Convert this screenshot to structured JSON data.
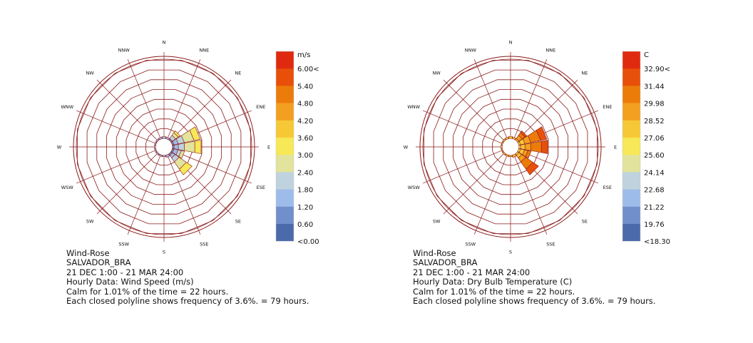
{
  "chart_data": [
    {
      "type": "wind-rose",
      "directions": [
        "N",
        "NNE",
        "NE",
        "ENE",
        "E",
        "ESE",
        "SE",
        "SSE",
        "S",
        "SSW",
        "SW",
        "WSW",
        "W",
        "WNW",
        "NW",
        "NNW"
      ],
      "ring_step_percent": 3.6,
      "ring_count": 8,
      "legend_unit": "m/s",
      "legend_labels": [
        "6.00<",
        "5.40",
        "4.80",
        "4.20",
        "3.60",
        "3.00",
        "2.40",
        "1.80",
        "1.20",
        "0.60",
        "<0.00"
      ],
      "legend_colors": [
        "#e02a10",
        "#e8500a",
        "#ec7c0a",
        "#f3a020",
        "#f7c836",
        "#f7e858",
        "#e2e39c",
        "#bfd3de",
        "#9ebce9",
        "#708fcb",
        "#4a6aab"
      ],
      "series": [
        {
          "direction": "N",
          "total_percent": 0.7,
          "bins": [
            {
              "color_index": 8,
              "percent": 0.7
            }
          ]
        },
        {
          "direction": "NNE",
          "total_percent": 0.6,
          "bins": [
            {
              "color_index": 8,
              "percent": 0.6
            }
          ]
        },
        {
          "direction": "NE",
          "total_percent": 4.0,
          "bins": [
            {
              "color_index": 9,
              "percent": 0.6
            },
            {
              "color_index": 7,
              "percent": 1.4
            },
            {
              "color_index": 6,
              "percent": 1.2
            },
            {
              "color_index": 5,
              "percent": 0.8
            }
          ]
        },
        {
          "direction": "ENE",
          "total_percent": 10.3,
          "bins": [
            {
              "color_index": 9,
              "percent": 0.6
            },
            {
              "color_index": 8,
              "percent": 1.6
            },
            {
              "color_index": 7,
              "percent": 2.2
            },
            {
              "color_index": 6,
              "percent": 3.6
            },
            {
              "color_index": 5,
              "percent": 2.3
            }
          ]
        },
        {
          "direction": "E",
          "total_percent": 10.5,
          "bins": [
            {
              "color_index": 9,
              "percent": 0.6
            },
            {
              "color_index": 8,
              "percent": 1.6
            },
            {
              "color_index": 7,
              "percent": 2.2
            },
            {
              "color_index": 6,
              "percent": 3.8
            },
            {
              "color_index": 5,
              "percent": 2.3
            }
          ]
        },
        {
          "direction": "ESE",
          "total_percent": 4.5,
          "bins": [
            {
              "color_index": 9,
              "percent": 0.6
            },
            {
              "color_index": 8,
              "percent": 1.5
            },
            {
              "color_index": 7,
              "percent": 1.2
            },
            {
              "color_index": 6,
              "percent": 1.2
            }
          ]
        },
        {
          "direction": "SE",
          "total_percent": 9.2,
          "bins": [
            {
              "color_index": 9,
              "percent": 0.6
            },
            {
              "color_index": 8,
              "percent": 1.2
            },
            {
              "color_index": 7,
              "percent": 1.7
            },
            {
              "color_index": 6,
              "percent": 3.2
            },
            {
              "color_index": 5,
              "percent": 2.5
            }
          ]
        },
        {
          "direction": "SSE",
          "total_percent": 0.8,
          "bins": [
            {
              "color_index": 8,
              "percent": 0.8
            }
          ]
        },
        {
          "direction": "S",
          "total_percent": 0.5,
          "bins": [
            {
              "color_index": 8,
              "percent": 0.5
            }
          ]
        },
        {
          "direction": "SSW",
          "total_percent": 0.5,
          "bins": [
            {
              "color_index": 8,
              "percent": 0.5
            }
          ]
        },
        {
          "direction": "SW",
          "total_percent": 0.5,
          "bins": [
            {
              "color_index": 8,
              "percent": 0.5
            }
          ]
        },
        {
          "direction": "WSW",
          "total_percent": 0.4,
          "bins": [
            {
              "color_index": 8,
              "percent": 0.4
            }
          ]
        },
        {
          "direction": "W",
          "total_percent": 0.4,
          "bins": [
            {
              "color_index": 8,
              "percent": 0.4
            }
          ]
        },
        {
          "direction": "WNW",
          "total_percent": 0.4,
          "bins": [
            {
              "color_index": 8,
              "percent": 0.4
            }
          ]
        },
        {
          "direction": "NW",
          "total_percent": 0.5,
          "bins": [
            {
              "color_index": 8,
              "percent": 0.5
            }
          ]
        },
        {
          "direction": "NNW",
          "total_percent": 0.6,
          "bins": [
            {
              "color_index": 8,
              "percent": 0.6
            }
          ]
        }
      ],
      "caption": [
        "Wind-Rose",
        "SALVADOR_BRA",
        "21 DEC 1:00 - 21 MAR 24:00",
        "Hourly Data: Wind Speed (m/s)",
        "Calm for 1.01% of the time = 22 hours.",
        "Each closed polyline shows frequency of 3.6%. = 79 hours."
      ]
    },
    {
      "type": "wind-rose",
      "directions": [
        "N",
        "NNE",
        "NE",
        "ENE",
        "E",
        "ESE",
        "SE",
        "SSE",
        "S",
        "SSW",
        "SW",
        "WSW",
        "W",
        "WNW",
        "NW",
        "NNW"
      ],
      "ring_step_percent": 3.6,
      "ring_count": 8,
      "legend_unit": "C",
      "legend_labels": [
        "32.90<",
        "31.44",
        "29.98",
        "28.52",
        "27.06",
        "25.60",
        "24.14",
        "22.68",
        "21.22",
        "19.76",
        "<18.30"
      ],
      "legend_colors": [
        "#e02a10",
        "#e8500a",
        "#ec7c0a",
        "#f3a020",
        "#f7c836",
        "#f7e858",
        "#e2e39c",
        "#bfd3de",
        "#9ebce9",
        "#708fcb",
        "#4a6aab"
      ],
      "series": [
        {
          "direction": "N",
          "total_percent": 0.7,
          "bins": [
            {
              "color_index": 4,
              "percent": 0.7
            }
          ]
        },
        {
          "direction": "NNE",
          "total_percent": 0.6,
          "bins": [
            {
              "color_index": 4,
              "percent": 0.6
            }
          ]
        },
        {
          "direction": "NE",
          "total_percent": 4.0,
          "bins": [
            {
              "color_index": 4,
              "percent": 0.6
            },
            {
              "color_index": 3,
              "percent": 1.4
            },
            {
              "color_index": 2,
              "percent": 1.2
            },
            {
              "color_index": 1,
              "percent": 0.8
            }
          ]
        },
        {
          "direction": "ENE",
          "total_percent": 10.3,
          "bins": [
            {
              "color_index": 5,
              "percent": 0.6
            },
            {
              "color_index": 4,
              "percent": 1.6
            },
            {
              "color_index": 3,
              "percent": 2.2
            },
            {
              "color_index": 2,
              "percent": 3.6
            },
            {
              "color_index": 1,
              "percent": 2.3
            }
          ]
        },
        {
          "direction": "E",
          "total_percent": 10.5,
          "bins": [
            {
              "color_index": 5,
              "percent": 0.6
            },
            {
              "color_index": 4,
              "percent": 1.6
            },
            {
              "color_index": 3,
              "percent": 2.2
            },
            {
              "color_index": 2,
              "percent": 3.8
            },
            {
              "color_index": 1,
              "percent": 2.3
            }
          ]
        },
        {
          "direction": "ESE",
          "total_percent": 4.5,
          "bins": [
            {
              "color_index": 5,
              "percent": 0.6
            },
            {
              "color_index": 4,
              "percent": 1.5
            },
            {
              "color_index": 3,
              "percent": 1.2
            },
            {
              "color_index": 2,
              "percent": 1.2
            }
          ]
        },
        {
          "direction": "SE",
          "total_percent": 9.2,
          "bins": [
            {
              "color_index": 5,
              "percent": 0.6
            },
            {
              "color_index": 4,
              "percent": 1.2
            },
            {
              "color_index": 3,
              "percent": 1.7
            },
            {
              "color_index": 2,
              "percent": 3.2
            },
            {
              "color_index": 1,
              "percent": 2.5
            }
          ]
        },
        {
          "direction": "SSE",
          "total_percent": 0.8,
          "bins": [
            {
              "color_index": 4,
              "percent": 0.8
            }
          ]
        },
        {
          "direction": "S",
          "total_percent": 0.5,
          "bins": [
            {
              "color_index": 4,
              "percent": 0.5
            }
          ]
        },
        {
          "direction": "SSW",
          "total_percent": 0.5,
          "bins": [
            {
              "color_index": 4,
              "percent": 0.5
            }
          ]
        },
        {
          "direction": "SW",
          "total_percent": 0.5,
          "bins": [
            {
              "color_index": 4,
              "percent": 0.5
            }
          ]
        },
        {
          "direction": "WSW",
          "total_percent": 0.4,
          "bins": [
            {
              "color_index": 4,
              "percent": 0.4
            }
          ]
        },
        {
          "direction": "W",
          "total_percent": 0.4,
          "bins": [
            {
              "color_index": 4,
              "percent": 0.4
            }
          ]
        },
        {
          "direction": "WNW",
          "total_percent": 0.4,
          "bins": [
            {
              "color_index": 4,
              "percent": 0.4
            }
          ]
        },
        {
          "direction": "NW",
          "total_percent": 0.5,
          "bins": [
            {
              "color_index": 4,
              "percent": 0.5
            }
          ]
        },
        {
          "direction": "NNW",
          "total_percent": 0.6,
          "bins": [
            {
              "color_index": 4,
              "percent": 0.6
            }
          ]
        }
      ],
      "caption": [
        "Wind-Rose",
        "SALVADOR_BRA",
        "21 DEC 1:00 - 21 MAR 24:00",
        "Hourly Data: Dry Bulb Temperature (C)",
        "Calm for 1.01% of the time = 22 hours.",
        "Each closed polyline shows frequency of 3.6%. = 79 hours."
      ]
    }
  ],
  "style": {
    "grid_color": "#8b1a1a",
    "spoke_color": "#8b1a1a",
    "bar_edge_color": "#8b1a1a",
    "text_color": "#111111"
  }
}
